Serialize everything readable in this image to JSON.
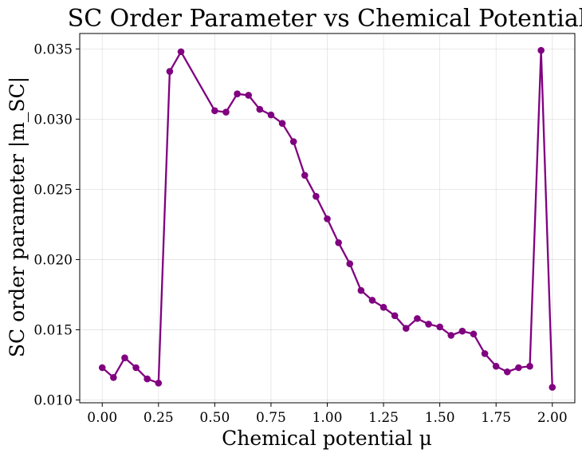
{
  "chart_data": {
    "type": "line",
    "title": "SC Order Parameter vs Chemical Potential",
    "xlabel": "Chemical potential μ",
    "ylabel": "SC order parameter |m_SC|",
    "xlim": [
      -0.1,
      2.1
    ],
    "ylim": [
      0.0098,
      0.0361
    ],
    "xticks": [
      0.0,
      0.25,
      0.5,
      0.75,
      1.0,
      1.25,
      1.5,
      1.75,
      2.0
    ],
    "xtick_labels": [
      "0.00",
      "0.25",
      "0.50",
      "0.75",
      "1.00",
      "1.25",
      "1.50",
      "1.75",
      "2.00"
    ],
    "yticks": [
      0.01,
      0.015,
      0.02,
      0.025,
      0.03,
      0.035
    ],
    "ytick_labels": [
      "0.010",
      "0.015",
      "0.020",
      "0.025",
      "0.030",
      "0.035"
    ],
    "grid": true,
    "color": "#800080",
    "marker": "circle",
    "series": [
      {
        "x": [
          0.0,
          0.05,
          0.1,
          0.15,
          0.2,
          0.25,
          0.3,
          0.35,
          0.5,
          0.55,
          0.6,
          0.65,
          0.7,
          0.75,
          0.8,
          0.85,
          0.9,
          0.95,
          1.0,
          1.05,
          1.1,
          1.15,
          1.2,
          1.25,
          1.3,
          1.35,
          1.4,
          1.45,
          1.5,
          1.55,
          1.6,
          1.65,
          1.7,
          1.75,
          1.8,
          1.85,
          1.9,
          1.95,
          2.0
        ],
        "values": [
          0.0123,
          0.0116,
          0.013,
          0.0123,
          0.0115,
          0.0112,
          0.0334,
          0.0348,
          0.0306,
          0.0305,
          0.0318,
          0.0317,
          0.0307,
          0.0303,
          0.0297,
          0.0284,
          0.026,
          0.0245,
          0.0229,
          0.0212,
          0.0197,
          0.0178,
          0.0171,
          0.0166,
          0.016,
          0.0151,
          0.0158,
          0.0154,
          0.0152,
          0.0146,
          0.0149,
          0.0147,
          0.0133,
          0.0124,
          0.012,
          0.0123,
          0.0124,
          0.0349,
          0.0109
        ]
      }
    ]
  }
}
